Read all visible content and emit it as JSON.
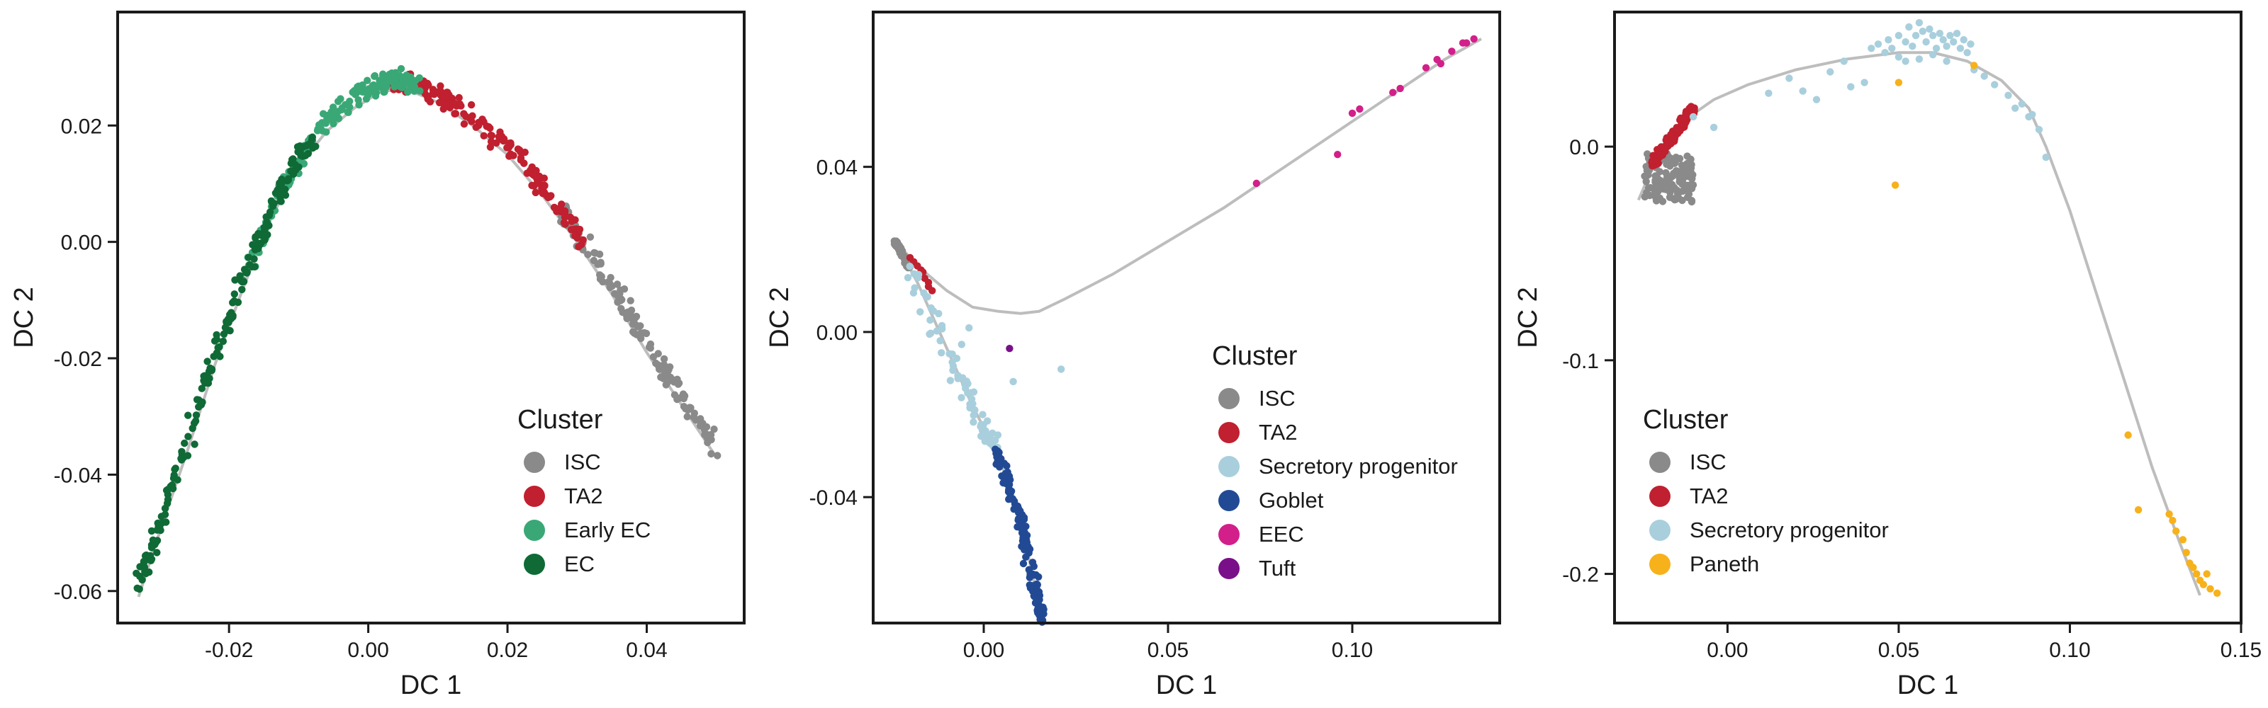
{
  "chart_data": [
    {
      "type": "scatter",
      "xlabel": "DC 1",
      "ylabel": "DC 2",
      "xlim": [
        -0.036,
        0.054
      ],
      "ylim": [
        -0.0655,
        0.0395
      ],
      "xticks": [
        -0.02,
        0.0,
        0.02,
        0.04
      ],
      "xtick_labels": [
        "-0.02",
        "0.00",
        "0.02",
        "0.04"
      ],
      "yticks": [
        -0.06,
        -0.04,
        -0.02,
        0.0,
        0.02
      ],
      "ytick_labels": [
        "-0.06",
        "-0.04",
        "-0.02",
        "0.00",
        "0.02"
      ],
      "legend": {
        "title": "Cluster",
        "position": "bottom-right"
      },
      "trajectory": [
        [
          -0.033,
          -0.061
        ],
        [
          -0.03,
          -0.05
        ],
        [
          -0.026,
          -0.036
        ],
        [
          -0.022,
          -0.021
        ],
        [
          -0.018,
          -0.008
        ],
        [
          -0.014,
          0.004
        ],
        [
          -0.01,
          0.013
        ],
        [
          -0.006,
          0.019
        ],
        [
          -0.002,
          0.023
        ],
        [
          0.002,
          0.026
        ],
        [
          0.006,
          0.026
        ],
        [
          0.01,
          0.024
        ],
        [
          0.015,
          0.02
        ],
        [
          0.02,
          0.015
        ],
        [
          0.025,
          0.008
        ],
        [
          0.03,
          0.0
        ],
        [
          0.035,
          -0.009
        ],
        [
          0.04,
          -0.019
        ],
        [
          0.045,
          -0.028
        ],
        [
          0.05,
          -0.037
        ]
      ],
      "series": [
        {
          "name": "ISC",
          "color": "#8a8a8a",
          "ranges": [
            [
              0.028,
              0.05
            ]
          ],
          "n": 150
        },
        {
          "name": "TA2",
          "color": "#c0202f",
          "ranges": [
            [
              0.004,
              0.031
            ]
          ],
          "n": 170
        },
        {
          "name": "Early EC",
          "color": "#3aa876",
          "ranges": [
            [
              -0.018,
              0.007
            ]
          ],
          "n": 180
        },
        {
          "name": "EC",
          "color": "#0f6a36",
          "ranges": [
            [
              -0.033,
              -0.008
            ]
          ],
          "n": 200
        }
      ]
    },
    {
      "type": "scatter",
      "xlabel": "DC 1",
      "ylabel": "DC 2",
      "xlim": [
        -0.03,
        0.14
      ],
      "ylim": [
        -0.0705,
        0.0775
      ],
      "xticks": [
        0.0,
        0.05,
        0.1
      ],
      "xtick_labels": [
        "0.00",
        "0.05",
        "0.10"
      ],
      "yticks": [
        -0.04,
        0.0,
        0.04
      ],
      "ytick_labels": [
        "-0.04",
        "0.00",
        "0.04"
      ],
      "legend": {
        "title": "Cluster",
        "position": "center-right"
      },
      "trajectory": [
        [
          -0.024,
          0.022
        ],
        [
          -0.018,
          0.016
        ],
        [
          -0.01,
          0.01
        ],
        [
          -0.003,
          0.006
        ],
        [
          0.004,
          0.005
        ],
        [
          0.01,
          0.0045
        ],
        [
          0.015,
          0.005
        ],
        [
          0.022,
          0.008
        ],
        [
          0.035,
          0.014
        ],
        [
          0.05,
          0.022
        ],
        [
          0.065,
          0.03
        ],
        [
          0.08,
          0.039
        ],
        [
          0.095,
          0.048
        ],
        [
          0.11,
          0.057
        ],
        [
          0.125,
          0.066
        ],
        [
          0.135,
          0.071
        ]
      ],
      "branch": [
        [
          -0.024,
          0.022
        ],
        [
          -0.018,
          0.012
        ],
        [
          -0.01,
          -0.004
        ],
        [
          -0.003,
          -0.018
        ],
        [
          0.004,
          -0.03
        ],
        [
          0.01,
          -0.045
        ],
        [
          0.013,
          -0.058
        ],
        [
          0.016,
          -0.07
        ]
      ],
      "series": [
        {
          "name": "ISC",
          "color": "#8a8a8a",
          "ranges": [],
          "n": 0
        },
        {
          "name": "TA2",
          "color": "#c0202f",
          "ranges": [],
          "n": 0
        },
        {
          "name": "Secretory progenitor",
          "color": "#a9cfdd",
          "ranges": [],
          "n": 0
        },
        {
          "name": "Goblet",
          "color": "#224a94",
          "ranges": [],
          "n": 0
        },
        {
          "name": "EEC",
          "color": "#d31f8a",
          "ranges": [],
          "n": 0
        },
        {
          "name": "Tuft",
          "color": "#7a0f8a",
          "ranges": [],
          "n": 0
        }
      ]
    },
    {
      "type": "scatter",
      "xlabel": "DC 1",
      "ylabel": "DC 2",
      "xlim": [
        -0.033,
        0.15
      ],
      "ylim": [
        -0.223,
        0.063
      ],
      "xticks": [
        0.0,
        0.05,
        0.1,
        0.15
      ],
      "xtick_labels": [
        "0.00",
        "0.05",
        "0.10",
        "0.15"
      ],
      "yticks": [
        -0.2,
        -0.1,
        0.0
      ],
      "ytick_labels": [
        "-0.2",
        "-0.1",
        "0.0"
      ],
      "legend": {
        "title": "Cluster",
        "position": "bottom-left"
      },
      "trajectory": [
        [
          -0.026,
          -0.025
        ],
        [
          -0.022,
          -0.01
        ],
        [
          -0.018,
          0.002
        ],
        [
          -0.012,
          0.013
        ],
        [
          -0.004,
          0.022
        ],
        [
          0.006,
          0.029
        ],
        [
          0.02,
          0.036
        ],
        [
          0.035,
          0.041
        ],
        [
          0.05,
          0.044
        ],
        [
          0.06,
          0.044
        ],
        [
          0.07,
          0.04
        ],
        [
          0.08,
          0.031
        ],
        [
          0.088,
          0.018
        ],
        [
          0.093,
          0.0
        ],
        [
          0.1,
          -0.03
        ],
        [
          0.108,
          -0.07
        ],
        [
          0.116,
          -0.11
        ],
        [
          0.124,
          -0.15
        ],
        [
          0.132,
          -0.185
        ],
        [
          0.138,
          -0.21
        ]
      ],
      "series": [
        {
          "name": "ISC",
          "color": "#8a8a8a",
          "ranges": [],
          "n": 0
        },
        {
          "name": "TA2",
          "color": "#c0202f",
          "ranges": [],
          "n": 0
        },
        {
          "name": "Secretory progenitor",
          "color": "#a9cfdd",
          "ranges": [],
          "n": 0
        },
        {
          "name": "Paneth",
          "color": "#f7b11b",
          "ranges": [],
          "n": 0
        }
      ]
    }
  ]
}
